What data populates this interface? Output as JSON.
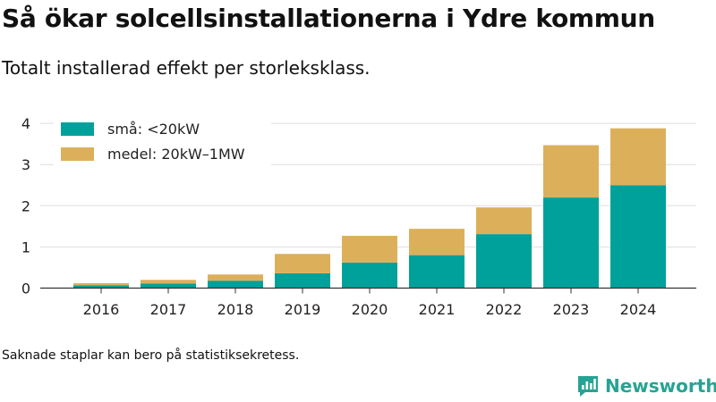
{
  "title": "Så ökar solcellsinstallationerna i Ydre kommun",
  "subtitle": "Totalt installerad effekt per storleksklass.",
  "footnote": "Saknade staplar kan bero på statistiksekretess.",
  "brand": {
    "name": "Newsworthy",
    "color": "#27a393",
    "icon": "newsworthy-logo-icon"
  },
  "chart_data": {
    "type": "bar",
    "stacked": true,
    "categories": [
      "2016",
      "2017",
      "2018",
      "2019",
      "2020",
      "2021",
      "2022",
      "2023",
      "2024"
    ],
    "series": [
      {
        "name": "små: <20kW",
        "color": "#00a19a",
        "values": [
          0.07,
          0.11,
          0.18,
          0.36,
          0.62,
          0.8,
          1.31,
          2.2,
          2.5
        ]
      },
      {
        "name": "medel: 20kW–1MW",
        "color": "#dcb05b",
        "values": [
          0.05,
          0.09,
          0.15,
          0.47,
          0.65,
          0.64,
          0.65,
          1.27,
          1.38
        ]
      }
    ],
    "yticks": [
      0,
      1,
      2,
      3,
      4
    ],
    "ylim": [
      0,
      4.25
    ],
    "xlabel": "",
    "ylabel": "",
    "grid": true,
    "legend": "top-left"
  }
}
